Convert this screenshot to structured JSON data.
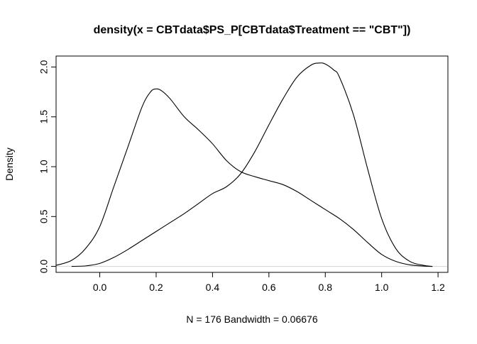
{
  "chart_data": {
    "type": "line",
    "title": "density(x = CBTdata$PS_P[CBTdata$Treatment == \"CBT\"])",
    "xlabel": "N = 176   Bandwidth = 0.06676",
    "ylabel": "Density",
    "xlim": [
      -0.155,
      1.235
    ],
    "ylim": [
      -0.06,
      2.11
    ],
    "x_ticks": [
      0.0,
      0.2,
      0.4,
      0.6,
      0.8,
      1.0,
      1.2
    ],
    "x_tick_labels": [
      "0.0",
      "0.2",
      "0.4",
      "0.6",
      "0.8",
      "1.0",
      "1.2"
    ],
    "y_ticks": [
      0.0,
      0.5,
      1.0,
      1.5,
      2.0
    ],
    "y_tick_labels": [
      "0.0",
      "0.5",
      "1.0",
      "1.5",
      "2.0"
    ],
    "grid": false,
    "baseline": {
      "y": 0,
      "color": "#d3d3d3"
    },
    "series": [
      {
        "color": "#000000",
        "x": [
          -0.155,
          -0.1,
          -0.05,
          0.0,
          0.05,
          0.1,
          0.15,
          0.18,
          0.2,
          0.22,
          0.25,
          0.3,
          0.35,
          0.4,
          0.45,
          0.5,
          0.55,
          0.6,
          0.65,
          0.7,
          0.75,
          0.8,
          0.85,
          0.9,
          0.95,
          1.0,
          1.05,
          1.1,
          1.15,
          1.18
        ],
        "y": [
          0.01,
          0.06,
          0.18,
          0.4,
          0.8,
          1.2,
          1.6,
          1.75,
          1.78,
          1.76,
          1.68,
          1.5,
          1.37,
          1.23,
          1.06,
          0.95,
          0.9,
          0.86,
          0.82,
          0.75,
          0.66,
          0.57,
          0.48,
          0.37,
          0.24,
          0.12,
          0.05,
          0.015,
          0.003,
          0.0
        ]
      },
      {
        "color": "#000000",
        "x": [
          -0.1,
          -0.05,
          0.0,
          0.05,
          0.1,
          0.15,
          0.2,
          0.25,
          0.3,
          0.35,
          0.4,
          0.45,
          0.5,
          0.55,
          0.6,
          0.65,
          0.7,
          0.75,
          0.78,
          0.8,
          0.83,
          0.85,
          0.9,
          0.95,
          1.0,
          1.05,
          1.1,
          1.15,
          1.18
        ],
        "y": [
          0.0,
          0.005,
          0.03,
          0.09,
          0.17,
          0.26,
          0.35,
          0.44,
          0.53,
          0.63,
          0.73,
          0.8,
          0.93,
          1.15,
          1.42,
          1.68,
          1.9,
          2.02,
          2.04,
          2.03,
          1.97,
          1.9,
          1.52,
          0.98,
          0.48,
          0.18,
          0.05,
          0.01,
          0.0
        ]
      }
    ]
  }
}
